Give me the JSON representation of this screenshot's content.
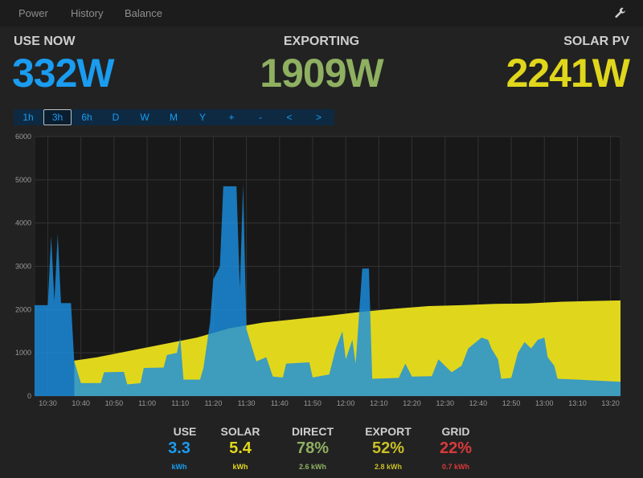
{
  "nav": {
    "tabs": [
      {
        "label": "Power",
        "active": true
      },
      {
        "label": "History",
        "active": false
      },
      {
        "label": "Balance",
        "active": false
      }
    ],
    "settings_icon": "wrench-icon"
  },
  "stats": {
    "use": {
      "label": "USE NOW",
      "value": "332W",
      "color": "#1a9cf0"
    },
    "export": {
      "label": "EXPORTING",
      "value": "1909W",
      "color": "#8fb061"
    },
    "solar": {
      "label": "SOLAR PV",
      "value": "2241W",
      "color": "#e0d71c"
    }
  },
  "range_buttons": [
    {
      "label": "1h",
      "active": false
    },
    {
      "label": "3h",
      "active": true
    },
    {
      "label": "6h",
      "active": false
    },
    {
      "label": "D",
      "active": false
    },
    {
      "label": "W",
      "active": false
    },
    {
      "label": "M",
      "active": false
    },
    {
      "label": "Y",
      "active": false
    },
    {
      "label": "+",
      "active": false
    },
    {
      "label": "-",
      "active": false
    },
    {
      "label": "<",
      "active": false
    },
    {
      "label": ">",
      "active": false
    }
  ],
  "chart_data": {
    "type": "area",
    "y_ticks": [
      "0",
      "1000",
      "2000",
      "3000",
      "4000",
      "5000",
      "6000"
    ],
    "ylim": [
      0,
      6000
    ],
    "x_ticks": [
      "10:30",
      "10:40",
      "10:50",
      "11:00",
      "11:10",
      "11:20",
      "11:30",
      "11:40",
      "11:50",
      "12:00",
      "12:10",
      "12:20",
      "12:30",
      "12:40",
      "12:50",
      "13:00",
      "13:10",
      "13:20"
    ],
    "xlim": [
      "10:26",
      "13:23"
    ],
    "grid": true,
    "series": [
      {
        "color": "#e0d71c",
        "points": [
          [
            "10:26",
            0
          ],
          [
            "10:38",
            0
          ],
          [
            "10:38",
            820
          ],
          [
            "10:45",
            900
          ],
          [
            "10:55",
            1050
          ],
          [
            "11:05",
            1200
          ],
          [
            "11:15",
            1350
          ],
          [
            "11:25",
            1570
          ],
          [
            "11:35",
            1700
          ],
          [
            "11:45",
            1780
          ],
          [
            "11:55",
            1860
          ],
          [
            "12:05",
            1950
          ],
          [
            "12:15",
            2020
          ],
          [
            "12:25",
            2080
          ],
          [
            "12:35",
            2100
          ],
          [
            "12:45",
            2130
          ],
          [
            "12:55",
            2140
          ],
          [
            "13:05",
            2180
          ],
          [
            "13:15",
            2200
          ],
          [
            "13:23",
            2210
          ]
        ]
      },
      {
        "color": "#1a8fe0",
        "points": [
          [
            "10:26",
            2100
          ],
          [
            "10:30",
            2100
          ],
          [
            "10:31",
            3700
          ],
          [
            "10:32",
            2200
          ],
          [
            "10:33",
            3750
          ],
          [
            "10:34",
            2150
          ],
          [
            "10:37",
            2150
          ],
          [
            "10:38",
            800
          ],
          [
            "10:40",
            300
          ],
          [
            "10:46",
            300
          ],
          [
            "10:47",
            550
          ],
          [
            "10:53",
            560
          ],
          [
            "10:54",
            270
          ],
          [
            "10:58",
            300
          ],
          [
            "10:59",
            650
          ],
          [
            "11:05",
            660
          ],
          [
            "11:06",
            950
          ],
          [
            "11:09",
            1000
          ],
          [
            "11:10",
            1350
          ],
          [
            "11:11",
            380
          ],
          [
            "11:16",
            380
          ],
          [
            "11:17",
            650
          ],
          [
            "11:19",
            1700
          ],
          [
            "11:20",
            2700
          ],
          [
            "11:22",
            3000
          ],
          [
            "11:23",
            4850
          ],
          [
            "11:27",
            4850
          ],
          [
            "11:28",
            2500
          ],
          [
            "11:29",
            4900
          ],
          [
            "11:30",
            1550
          ],
          [
            "11:33",
            800
          ],
          [
            "11:36",
            900
          ],
          [
            "11:38",
            450
          ],
          [
            "11:41",
            430
          ],
          [
            "11:42",
            750
          ],
          [
            "11:49",
            780
          ],
          [
            "11:50",
            430
          ],
          [
            "11:55",
            500
          ],
          [
            "11:57",
            1100
          ],
          [
            "11:59",
            1500
          ],
          [
            "12:00",
            850
          ],
          [
            "12:02",
            1300
          ],
          [
            "12:03",
            750
          ],
          [
            "12:05",
            2950
          ],
          [
            "12:07",
            2950
          ],
          [
            "12:08",
            400
          ],
          [
            "12:16",
            420
          ],
          [
            "12:18",
            750
          ],
          [
            "12:20",
            450
          ],
          [
            "12:26",
            460
          ],
          [
            "12:28",
            850
          ],
          [
            "12:32",
            550
          ],
          [
            "12:35",
            700
          ],
          [
            "12:37",
            1100
          ],
          [
            "12:41",
            1350
          ],
          [
            "12:43",
            1300
          ],
          [
            "12:44",
            1100
          ],
          [
            "12:46",
            850
          ],
          [
            "12:47",
            400
          ],
          [
            "12:50",
            420
          ],
          [
            "12:52",
            1000
          ],
          [
            "12:54",
            1250
          ],
          [
            "12:56",
            1100
          ],
          [
            "12:58",
            1300
          ],
          [
            "13:00",
            1350
          ],
          [
            "13:01",
            900
          ],
          [
            "13:03",
            700
          ],
          [
            "13:04",
            400
          ],
          [
            "13:10",
            380
          ],
          [
            "13:15",
            360
          ],
          [
            "13:23",
            330
          ]
        ]
      }
    ]
  },
  "summary": [
    {
      "label": "USE",
      "value": "3.3",
      "unit": "kWh",
      "color": "#1a9cf0"
    },
    {
      "label": "SOLAR",
      "value": "5.4",
      "unit": "kWh",
      "color": "#e0d71c"
    },
    {
      "label": "DIRECT",
      "value": "78%",
      "unit": "2.6 kWh",
      "color": "#8fb061"
    },
    {
      "label": "EXPORT",
      "value": "52%",
      "unit": "2.8 kWh",
      "color": "#c9bf25"
    },
    {
      "label": "GRID",
      "value": "22%",
      "unit": "0.7 kWh",
      "color": "#d83a3a"
    }
  ]
}
